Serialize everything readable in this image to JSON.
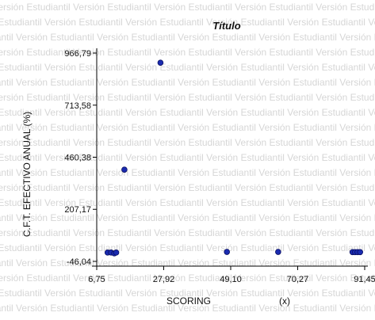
{
  "watermark": {
    "text": "Versión Estudiantil"
  },
  "chart_data": {
    "type": "scatter",
    "title": "Título",
    "xlabel": "SCORING",
    "xunit": "(x)",
    "ylabel": "C.F.T. EFECTIVO ANUAL (%)",
    "xlim": [
      6.75,
      91.45
    ],
    "ylim": [
      -46.04,
      966.79
    ],
    "xticks": [
      "6,75",
      "27,92",
      "49,10",
      "70,27",
      "91,45"
    ],
    "yticks": [
      "-46,04",
      "207,17",
      "460,38",
      "713,58",
      "966,79"
    ],
    "x_tick_values": [
      6.75,
      27.92,
      49.1,
      70.27,
      91.45
    ],
    "y_tick_values": [
      -46.04,
      207.17,
      460.38,
      713.58,
      966.79
    ],
    "marker_color": "#1a2bb0",
    "points": [
      {
        "x": 26.9,
        "y": 920
      },
      {
        "x": 15.5,
        "y": 400
      },
      {
        "x": 10.2,
        "y": -3
      },
      {
        "x": 11.3,
        "y": -3
      },
      {
        "x": 12.3,
        "y": -7
      },
      {
        "x": 12.9,
        "y": -3
      },
      {
        "x": 47.9,
        "y": 0
      },
      {
        "x": 64.1,
        "y": 0
      },
      {
        "x": 87.6,
        "y": -1
      },
      {
        "x": 88.4,
        "y": -1
      },
      {
        "x": 89.2,
        "y": -1
      },
      {
        "x": 90.0,
        "y": -1
      }
    ]
  }
}
